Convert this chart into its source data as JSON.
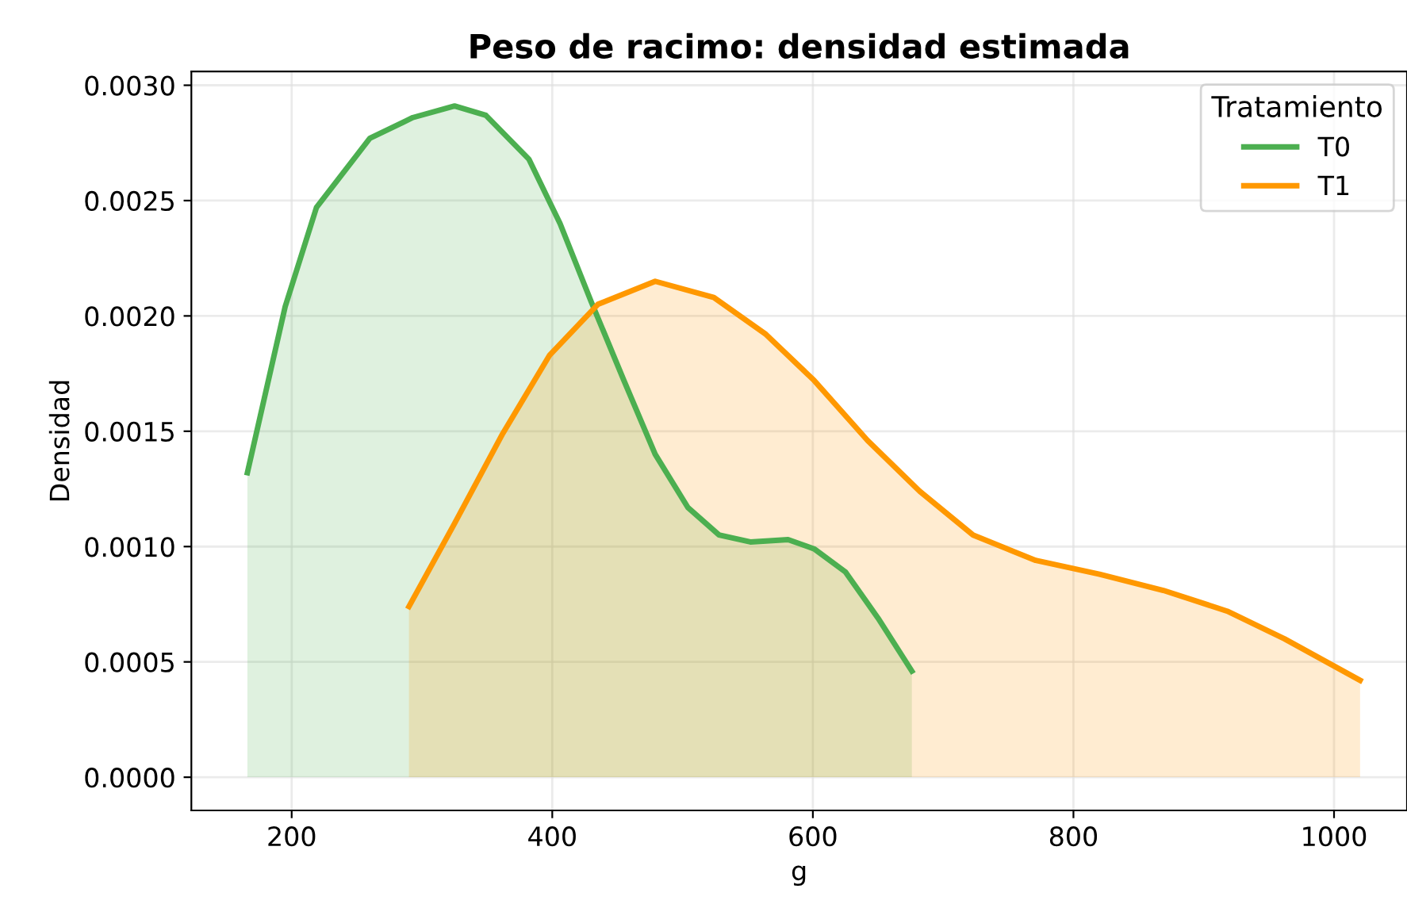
{
  "chart_data": {
    "type": "area",
    "title": "Peso de racimo: densidad estimada",
    "xlabel": "g",
    "ylabel": "Densidad",
    "legend_title": "Tratamiento",
    "series": [
      {
        "name": "T0",
        "color": "#4caf50",
        "x": [
          166,
          195,
          219,
          260,
          293,
          325,
          349,
          382,
          406,
          430,
          455,
          479,
          504,
          528,
          552,
          581,
          601,
          625,
          650,
          676
        ],
        "values": [
          0.00132,
          0.00204,
          0.00247,
          0.00277,
          0.00286,
          0.00291,
          0.00287,
          0.00268,
          0.0024,
          0.00206,
          0.00172,
          0.0014,
          0.00117,
          0.00105,
          0.00102,
          0.00103,
          0.00099,
          0.00089,
          0.00069,
          0.00046
        ]
      },
      {
        "name": "T1",
        "color": "#ff9800",
        "x": [
          290,
          325,
          362,
          398,
          435,
          479,
          524,
          564,
          601,
          642,
          682,
          723,
          771,
          820,
          869,
          918,
          962,
          1020
        ],
        "values": [
          0.00074,
          0.0011,
          0.00149,
          0.00183,
          0.00205,
          0.00215,
          0.00208,
          0.00192,
          0.00172,
          0.00146,
          0.00124,
          0.00105,
          0.00094,
          0.00088,
          0.00081,
          0.00072,
          0.0006,
          0.00042
        ]
      }
    ],
    "xlim": [
      123,
      1056
    ],
    "xticks": [
      200,
      400,
      600,
      800,
      1000
    ],
    "ylim": [
      -0.000144,
      0.00306
    ],
    "yticks": [
      {
        "value": 0,
        "label": "0.0000"
      },
      {
        "value": 0.0005,
        "label": "0.0005"
      },
      {
        "value": 0.001,
        "label": "0.0010"
      },
      {
        "value": 0.0015,
        "label": "0.0015"
      },
      {
        "value": 0.002,
        "label": "0.0020"
      },
      {
        "value": 0.0025,
        "label": "0.0025"
      },
      {
        "value": 0.003,
        "label": "0.0030"
      }
    ],
    "grid": true,
    "legend": "top right",
    "line_style": "solid"
  }
}
